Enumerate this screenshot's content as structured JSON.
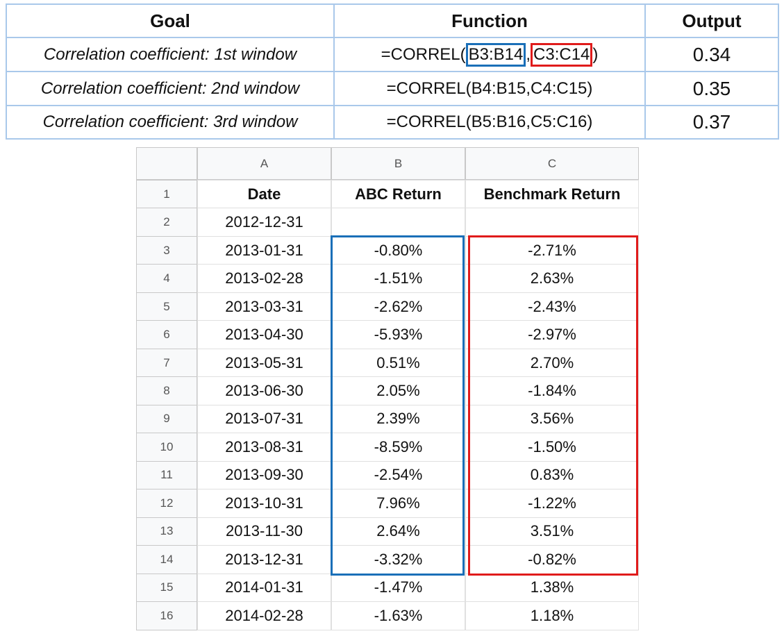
{
  "summary_table": {
    "headers": [
      "Goal",
      "Function",
      "Output"
    ],
    "rows": [
      {
        "goal": "Correlation coefficient: 1st window",
        "function": {
          "prefix": "=CORREL(",
          "range1": "B3:B14",
          "separator": ",",
          "range2": "C3:C14",
          "suffix": ")"
        },
        "output": 0.34
      },
      {
        "goal": "Correlation coefficient: 2nd window",
        "function": "=CORREL(B4:B15,C4:C15)",
        "output": 0.35
      },
      {
        "goal": "Correlation coefficient: 3rd window",
        "function": "=CORREL(B5:B16,C5:C16)",
        "output": 0.37
      }
    ]
  },
  "spreadsheet": {
    "column_letters": [
      "A",
      "B",
      "C"
    ],
    "row_numbers": [
      1,
      2,
      3,
      4,
      5,
      6,
      7,
      8,
      9,
      10,
      11,
      12,
      13,
      14,
      15,
      16
    ],
    "header": [
      "Date",
      "ABC Return",
      "Benchmark Return"
    ],
    "rows": [
      [
        "2012-12-31",
        null,
        null
      ],
      [
        "2013-01-31",
        "-0.80%",
        "-2.71%"
      ],
      [
        "2013-02-28",
        "-1.51%",
        "2.63%"
      ],
      [
        "2013-03-31",
        "-2.62%",
        "-2.43%"
      ],
      [
        "2013-04-30",
        "-5.93%",
        "-2.97%"
      ],
      [
        "2013-05-31",
        "0.51%",
        "2.70%"
      ],
      [
        "2013-06-30",
        "2.05%",
        "-1.84%"
      ],
      [
        "2013-07-31",
        "2.39%",
        "3.56%"
      ],
      [
        "2013-08-31",
        "-8.59%",
        "-1.50%"
      ],
      [
        "2013-09-30",
        "-2.54%",
        "0.83%"
      ],
      [
        "2013-10-31",
        "7.96%",
        "-1.22%"
      ],
      [
        "2013-11-30",
        "2.64%",
        "3.51%"
      ],
      [
        "2013-12-31",
        "-3.32%",
        "-0.82%"
      ],
      [
        "2014-01-31",
        "-1.47%",
        "1.38%"
      ],
      [
        "2014-02-28",
        "-1.63%",
        "1.18%"
      ]
    ]
  }
}
